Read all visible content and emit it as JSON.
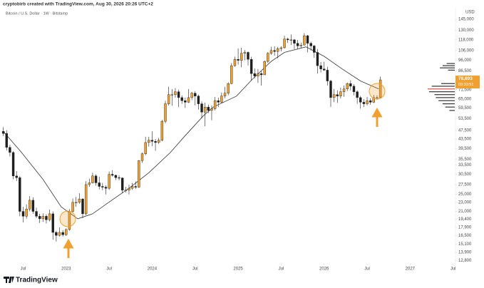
{
  "header": "cryptobirb created with TradingView.com, Aug 30, 2026 20:26 UTC+2",
  "footer": "TradingView",
  "chart_data": {
    "type": "candlestick",
    "title": "Bitcoin / U.S. Dollar · 1W · Bitstamp",
    "currency": "USD",
    "log_scale": true,
    "up_color": "#f0a030",
    "down_color": "#1e1e1e",
    "ylim": [
      12400,
      164000
    ],
    "yticks": [
      {
        "value": 145000,
        "label": "145,000"
      },
      {
        "value": 130000,
        "label": "130,000"
      },
      {
        "value": 118000,
        "label": "118,000"
      },
      {
        "value": 106000,
        "label": "106,000"
      },
      {
        "value": 96000,
        "label": "96,000"
      },
      {
        "value": 86500,
        "label": "86,500"
      },
      {
        "value": 71500,
        "label": "71,500"
      },
      {
        "value": 65000,
        "label": "65,000"
      },
      {
        "value": 59500,
        "label": "59,500"
      },
      {
        "value": 53500,
        "label": "53,500"
      },
      {
        "value": 47500,
        "label": "47,500"
      },
      {
        "value": 43500,
        "label": "43,500"
      },
      {
        "value": 39500,
        "label": "39,500"
      },
      {
        "value": 35500,
        "label": "35,500"
      },
      {
        "value": 33500,
        "label": "33,500"
      },
      {
        "value": 30500,
        "label": "30,500"
      },
      {
        "value": 27500,
        "label": "27,500"
      },
      {
        "value": 25000,
        "label": "25,000"
      },
      {
        "value": 23000,
        "label": "23,000"
      },
      {
        "value": 21000,
        "label": "21,000"
      },
      {
        "value": 19400,
        "label": "19,400"
      },
      {
        "value": 17900,
        "label": "17,900"
      },
      {
        "value": 16500,
        "label": "16,500"
      },
      {
        "value": 15100,
        "label": "15,100"
      },
      {
        "value": 13900,
        "label": "13,900"
      },
      {
        "value": 12800,
        "label": "12,800"
      }
    ],
    "xlim": [
      -40,
      235
    ],
    "xticks": [
      {
        "value": -26,
        "label": "Jul"
      },
      {
        "value": 0,
        "label": "2023"
      },
      {
        "value": 26,
        "label": "Jul"
      },
      {
        "value": 52,
        "label": "2024"
      },
      {
        "value": 78,
        "label": "Jul"
      },
      {
        "value": 104,
        "label": "2025"
      },
      {
        "value": 130,
        "label": "Jul"
      },
      {
        "value": 156,
        "label": "2026"
      },
      {
        "value": 182,
        "label": "Jul"
      },
      {
        "value": 208,
        "label": "2027"
      },
      {
        "value": 234,
        "label": "Jul"
      }
    ],
    "x": [
      -38,
      -36,
      -34,
      -32,
      -30,
      -28,
      -26,
      -24,
      -22,
      -20,
      -18,
      -16,
      -14,
      -12,
      -10,
      -8,
      -6,
      -4,
      -2,
      0,
      2,
      4,
      6,
      8,
      10,
      12,
      14,
      16,
      18,
      20,
      22,
      24,
      26,
      28,
      30,
      32,
      34,
      36,
      38,
      40,
      42,
      44,
      46,
      48,
      50,
      52,
      54,
      56,
      58,
      60,
      62,
      64,
      66,
      68,
      70,
      72,
      74,
      76,
      78,
      80,
      82,
      84,
      86,
      88,
      90,
      92,
      94,
      96,
      98,
      100,
      102,
      104,
      106,
      108,
      110,
      112,
      114,
      116,
      118,
      120,
      122,
      124,
      126,
      128,
      130,
      132,
      134,
      136,
      138,
      140,
      142,
      144,
      146,
      148,
      150,
      152,
      154,
      156,
      158,
      160,
      162,
      164,
      166,
      168,
      170,
      172,
      174,
      176,
      178,
      180,
      182,
      184,
      186,
      188,
      190
    ],
    "candles": [
      [
        47000,
        49000,
        44800,
        46000
      ],
      [
        46000,
        47500,
        38800,
        40000
      ],
      [
        40000,
        41000,
        36500,
        38000
      ],
      [
        38000,
        38500,
        29000,
        30000
      ],
      [
        30000,
        31500,
        28500,
        29500
      ],
      [
        29500,
        30000,
        20000,
        21000
      ],
      [
        21000,
        22000,
        18800,
        20000
      ],
      [
        20000,
        22500,
        19500,
        21500
      ],
      [
        21500,
        24500,
        21000,
        23500
      ],
      [
        23500,
        24200,
        20500,
        21000
      ],
      [
        21000,
        21800,
        19600,
        20000
      ],
      [
        20000,
        20500,
        18700,
        19500
      ],
      [
        19500,
        20600,
        18900,
        20000
      ],
      [
        20000,
        20400,
        18600,
        19300
      ],
      [
        19300,
        21400,
        19000,
        20500
      ],
      [
        20500,
        21000,
        15800,
        17000
      ],
      [
        17000,
        17300,
        15500,
        16500
      ],
      [
        16500,
        17900,
        16300,
        17000
      ],
      [
        17000,
        17400,
        16300,
        16600
      ],
      [
        16600,
        17700,
        16400,
        17500
      ],
      [
        17500,
        21500,
        17300,
        21000
      ],
      [
        21000,
        23900,
        20800,
        23000
      ],
      [
        23000,
        24300,
        22000,
        23000
      ],
      [
        23000,
        25200,
        22700,
        23800
      ],
      [
        23800,
        24000,
        19600,
        20500
      ],
      [
        20500,
        28500,
        20200,
        27500
      ],
      [
        27500,
        29200,
        26900,
        28000
      ],
      [
        28000,
        31000,
        27800,
        30000
      ],
      [
        30000,
        30500,
        27200,
        28000
      ],
      [
        28000,
        29800,
        26200,
        27000
      ],
      [
        27000,
        28000,
        26000,
        26800
      ],
      [
        26800,
        27300,
        24900,
        26500
      ],
      [
        26500,
        31400,
        26100,
        30500
      ],
      [
        30500,
        31800,
        29800,
        30200
      ],
      [
        30200,
        30400,
        28800,
        29500
      ],
      [
        29500,
        30200,
        28700,
        29400
      ],
      [
        29400,
        29600,
        25200,
        26000
      ],
      [
        26000,
        26900,
        25400,
        26000
      ],
      [
        26000,
        27500,
        24900,
        26500
      ],
      [
        26500,
        28000,
        26100,
        27000
      ],
      [
        27000,
        28400,
        26300,
        26800
      ],
      [
        26800,
        35200,
        26600,
        35000
      ],
      [
        35000,
        38000,
        34200,
        37500
      ],
      [
        37500,
        44500,
        37000,
        42000
      ],
      [
        42000,
        44500,
        40300,
        43000
      ],
      [
        43000,
        47000,
        40500,
        42500
      ],
      [
        42500,
        43500,
        38600,
        42000
      ],
      [
        42000,
        44000,
        41400,
        43000
      ],
      [
        43000,
        52800,
        42500,
        52000
      ],
      [
        52000,
        64000,
        51000,
        62000
      ],
      [
        62000,
        73700,
        61000,
        68000
      ],
      [
        68000,
        71900,
        60800,
        68000
      ],
      [
        68000,
        72600,
        66000,
        70000
      ],
      [
        70000,
        71500,
        60100,
        66000
      ],
      [
        66000,
        67500,
        62000,
        64000
      ],
      [
        64000,
        66000,
        59500,
        63000
      ],
      [
        63000,
        71900,
        62500,
        66000
      ],
      [
        66000,
        70000,
        64500,
        69000
      ],
      [
        69000,
        70500,
        61000,
        67000
      ],
      [
        67000,
        68000,
        58500,
        62000
      ],
      [
        62000,
        63500,
        53500,
        57000
      ],
      [
        57000,
        62700,
        49500,
        60000
      ],
      [
        60000,
        61500,
        56500,
        58000
      ],
      [
        58000,
        61000,
        52500,
        59000
      ],
      [
        59000,
        66500,
        58000,
        64000
      ],
      [
        64000,
        66000,
        60000,
        63000
      ],
      [
        63000,
        69500,
        62500,
        67000
      ],
      [
        67000,
        73600,
        65500,
        69000
      ],
      [
        69000,
        77000,
        67500,
        76000
      ],
      [
        76000,
        93400,
        75500,
        91000
      ],
      [
        91000,
        99600,
        90000,
        97000
      ],
      [
        97000,
        108300,
        92000,
        96000
      ],
      [
        96000,
        109000,
        89500,
        103000
      ],
      [
        103000,
        106500,
        96000,
        104000
      ],
      [
        104000,
        105000,
        91200,
        97000
      ],
      [
        97000,
        99500,
        78200,
        84000
      ],
      [
        84000,
        88500,
        80000,
        82000
      ],
      [
        82000,
        88000,
        76500,
        84000
      ],
      [
        84000,
        86000,
        74500,
        83000
      ],
      [
        83000,
        95800,
        83000,
        95000
      ],
      [
        95000,
        104500,
        93500,
        103000
      ],
      [
        103000,
        110000,
        101500,
        106000
      ],
      [
        106000,
        110500,
        100500,
        105000
      ],
      [
        105000,
        110000,
        98000,
        108000
      ],
      [
        108000,
        110500,
        105000,
        109000
      ],
      [
        109000,
        123000,
        108000,
        119000
      ],
      [
        119000,
        120500,
        114500,
        118000
      ],
      [
        118000,
        124500,
        112000,
        118000
      ],
      [
        118000,
        119000,
        107500,
        114000
      ],
      [
        114000,
        117900,
        107300,
        111000
      ],
      [
        111000,
        114800,
        108700,
        112000
      ],
      [
        112000,
        126200,
        111500,
        123000
      ],
      [
        123000,
        124000,
        104000,
        114000
      ],
      [
        114000,
        116000,
        106000,
        111000
      ],
      [
        111000,
        112000,
        98500,
        104000
      ],
      [
        104000,
        107500,
        84000,
        91000
      ],
      [
        91000,
        94500,
        85000,
        88000
      ],
      [
        88000,
        94700,
        86500,
        87000
      ],
      [
        87000,
        90000,
        74500,
        78000
      ],
      [
        78000,
        79000,
        60000,
        66000
      ],
      [
        66000,
        72000,
        63000,
        68000
      ],
      [
        68000,
        71000,
        62500,
        67000
      ],
      [
        67000,
        73000,
        65500,
        70000
      ],
      [
        70000,
        74500,
        66500,
        72000
      ],
      [
        72000,
        76800,
        70500,
        76000
      ],
      [
        76000,
        78500,
        71000,
        74000
      ],
      [
        74000,
        75500,
        67500,
        70000
      ],
      [
        70000,
        71000,
        62000,
        66000
      ],
      [
        66000,
        67000,
        59000,
        63000
      ],
      [
        63000,
        65000,
        60000,
        62000
      ],
      [
        62000,
        66500,
        61000,
        64000
      ],
      [
        64000,
        65500,
        61500,
        63000
      ],
      [
        63000,
        67800,
        62500,
        66000
      ],
      [
        66000,
        67500,
        64500,
        66000
      ],
      [
        66000,
        81500,
        65800,
        78893
      ]
    ],
    "moving_average": {
      "color": "#333333",
      "x": [
        -38,
        -27,
        -14,
        -3,
        7,
        16,
        25,
        38,
        50,
        63,
        72,
        83,
        89,
        103,
        113,
        124,
        132,
        145,
        156,
        167,
        178,
        189
      ],
      "values": [
        47000,
        38000,
        29000,
        22000,
        19500,
        20500,
        22800,
        26500,
        31000,
        38000,
        45000,
        55000,
        60000,
        67000,
        80000,
        95000,
        104000,
        110000,
        100000,
        88000,
        78000,
        72000
      ]
    },
    "volume_profile": {
      "color": "#333333",
      "highlight": "#e05050",
      "prices": [
        93000,
        91000,
        89000,
        87000,
        76000,
        74000,
        72000,
        70000,
        68000,
        66000,
        64000,
        62000,
        60000,
        58000
      ],
      "values": [
        12,
        18,
        22,
        10,
        20,
        34,
        40,
        38,
        30,
        28,
        24,
        18,
        14,
        8
      ]
    },
    "last_price": {
      "value": 78893,
      "label": "78,893"
    },
    "countdown": "03:33:51"
  }
}
